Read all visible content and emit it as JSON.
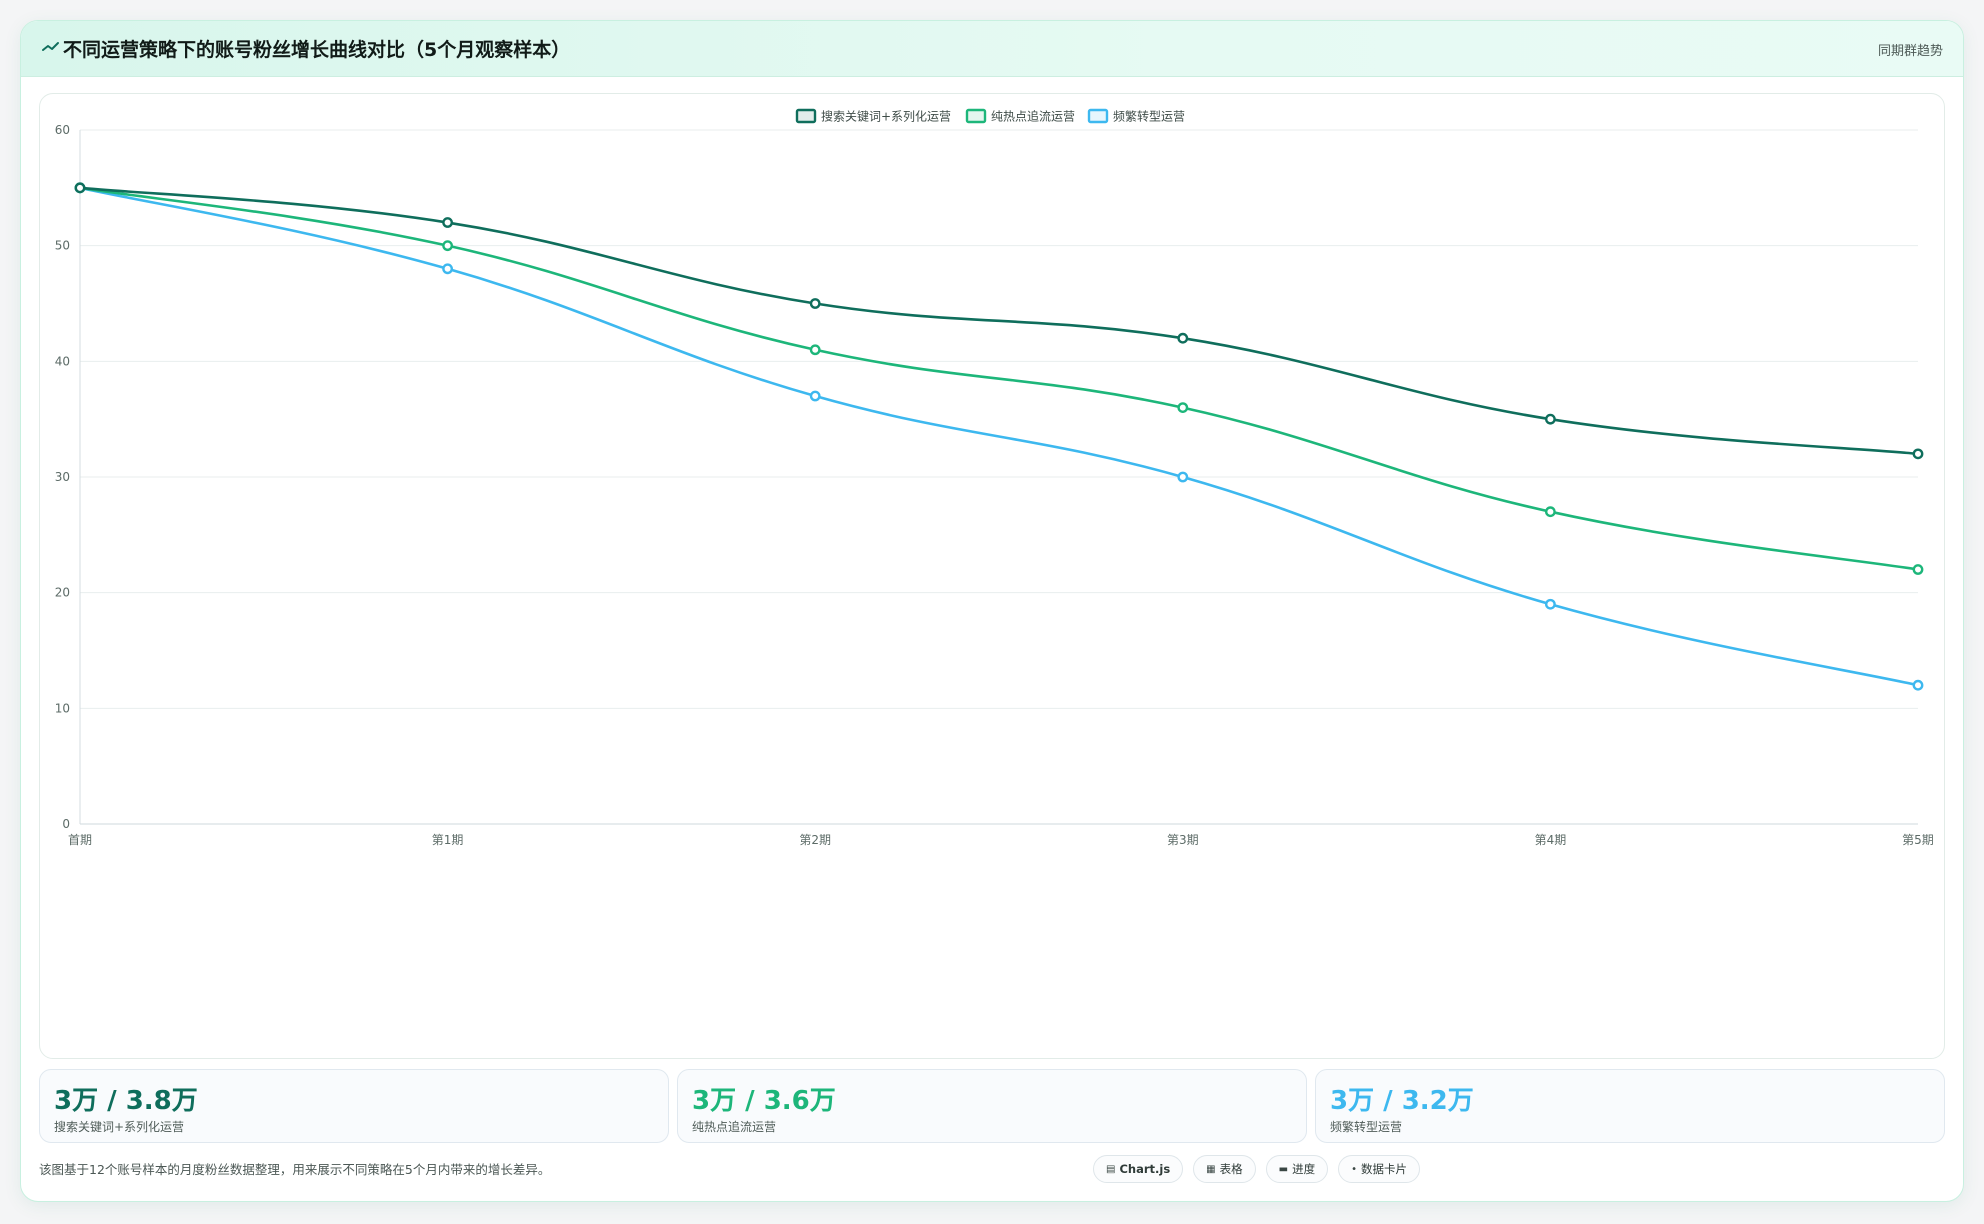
{
  "header": {
    "icon": "trend-line-icon",
    "title": "不同运营策略下的账号粉丝增长曲线对比（5个月观察样本）",
    "subtitle": "同期群趋势"
  },
  "chart_data": {
    "type": "line",
    "categories": [
      "首期",
      "第1期",
      "第2期",
      "第3期",
      "第4期",
      "第5期"
    ],
    "ylim": [
      0,
      60
    ],
    "yticks": [
      0,
      10,
      20,
      30,
      40,
      50,
      60
    ],
    "grid": true,
    "legend_position": "top-center",
    "series": [
      {
        "name": "搜索关键词+系列化运营",
        "color": "#0f6e5c",
        "values": [
          55,
          52,
          45,
          42,
          35,
          32
        ]
      },
      {
        "name": "纯热点追流运营",
        "color": "#1db67a",
        "values": [
          55,
          50,
          41,
          36,
          27,
          22
        ]
      },
      {
        "name": "频繁转型运营",
        "color": "#3db8ef",
        "values": [
          55,
          48,
          37,
          30,
          19,
          12
        ]
      }
    ]
  },
  "stats": [
    {
      "value": "3万 / 3.8万",
      "label": "搜索关键词+系列化运营",
      "color": "#0f6e5c"
    },
    {
      "value": "3万 / 3.6万",
      "label": "纯热点追流运营",
      "color": "#1db67a"
    },
    {
      "value": "3万 / 3.2万",
      "label": "频繁转型运营",
      "color": "#3db8ef"
    }
  ],
  "footer": {
    "note": "该图基于12个账号样本的月度粉丝数据整理，用来展示不同策略在5个月内带来的增长差异。",
    "tools": [
      {
        "glyph": "▤",
        "label": "Chart.js"
      },
      {
        "glyph": "▦",
        "label": "表格"
      },
      {
        "glyph": "▬",
        "label": "进度"
      },
      {
        "glyph": "•",
        "label": "数据卡片"
      }
    ]
  }
}
